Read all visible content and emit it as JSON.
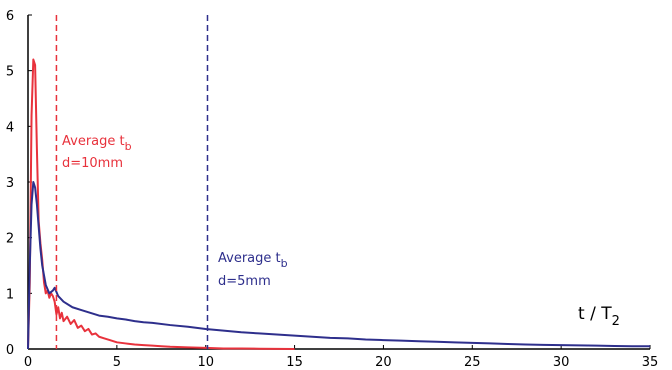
{
  "chart_data": {
    "type": "line",
    "title": "",
    "xlabel": "t / T",
    "xlabel_subscript": "2",
    "ylabel": "",
    "xlim": [
      0,
      35
    ],
    "ylim": [
      0,
      6
    ],
    "xticks": [
      0,
      5,
      10,
      15,
      20,
      25,
      30,
      35
    ],
    "yticks": [
      0,
      1,
      2,
      3,
      4,
      5,
      6
    ],
    "grid": false,
    "colors": {
      "red": "#e8323c",
      "blue": "#2e2f8c"
    },
    "series": [
      {
        "color": "#e8323c",
        "points": [
          [
            0.0,
            0.0
          ],
          [
            0.1,
            1.2
          ],
          [
            0.2,
            4.2
          ],
          [
            0.3,
            5.2
          ],
          [
            0.4,
            5.1
          ],
          [
            0.5,
            3.6
          ],
          [
            0.6,
            2.3
          ],
          [
            0.7,
            1.9
          ],
          [
            0.8,
            1.6
          ],
          [
            0.9,
            1.2
          ],
          [
            1.0,
            1.0
          ],
          [
            1.1,
            1.05
          ],
          [
            1.2,
            0.92
          ],
          [
            1.3,
            1.0
          ],
          [
            1.4,
            0.95
          ],
          [
            1.5,
            0.85
          ],
          [
            1.6,
            0.62
          ],
          [
            1.7,
            0.75
          ],
          [
            1.8,
            0.55
          ],
          [
            1.9,
            0.65
          ],
          [
            2.0,
            0.5
          ],
          [
            2.2,
            0.58
          ],
          [
            2.4,
            0.45
          ],
          [
            2.6,
            0.52
          ],
          [
            2.8,
            0.38
          ],
          [
            3.0,
            0.42
          ],
          [
            3.2,
            0.32
          ],
          [
            3.4,
            0.36
          ],
          [
            3.6,
            0.26
          ],
          [
            3.8,
            0.28
          ],
          [
            4.0,
            0.22
          ],
          [
            4.3,
            0.19
          ],
          [
            4.6,
            0.16
          ],
          [
            5.0,
            0.12
          ],
          [
            5.5,
            0.1
          ],
          [
            6.0,
            0.08
          ],
          [
            6.5,
            0.07
          ],
          [
            7.0,
            0.06
          ],
          [
            7.5,
            0.05
          ],
          [
            8.0,
            0.04
          ],
          [
            9.0,
            0.03
          ],
          [
            10.0,
            0.02
          ],
          [
            11.0,
            0.01
          ],
          [
            12.0,
            0.008
          ],
          [
            13.0,
            0.005
          ],
          [
            14.0,
            0.003
          ],
          [
            15.0,
            0.0
          ]
        ]
      },
      {
        "color": "#2e2f8c",
        "points": [
          [
            0.0,
            0.0
          ],
          [
            0.1,
            1.5
          ],
          [
            0.2,
            2.6
          ],
          [
            0.3,
            3.0
          ],
          [
            0.4,
            2.9
          ],
          [
            0.5,
            2.6
          ],
          [
            0.6,
            2.2
          ],
          [
            0.7,
            1.8
          ],
          [
            0.8,
            1.5
          ],
          [
            1.0,
            1.15
          ],
          [
            1.2,
            1.0
          ],
          [
            1.4,
            1.05
          ],
          [
            1.5,
            1.1
          ],
          [
            1.7,
            0.95
          ],
          [
            2.0,
            0.85
          ],
          [
            2.5,
            0.75
          ],
          [
            3.0,
            0.7
          ],
          [
            3.5,
            0.65
          ],
          [
            4.0,
            0.6
          ],
          [
            4.5,
            0.58
          ],
          [
            5.0,
            0.55
          ],
          [
            5.5,
            0.53
          ],
          [
            6.0,
            0.5
          ],
          [
            6.5,
            0.48
          ],
          [
            7.0,
            0.47
          ],
          [
            8.0,
            0.43
          ],
          [
            9.0,
            0.4
          ],
          [
            10.0,
            0.36
          ],
          [
            11.0,
            0.33
          ],
          [
            12.0,
            0.3
          ],
          [
            13.0,
            0.28
          ],
          [
            14.0,
            0.26
          ],
          [
            15.0,
            0.24
          ],
          [
            16.0,
            0.22
          ],
          [
            17.0,
            0.2
          ],
          [
            18.0,
            0.19
          ],
          [
            19.0,
            0.17
          ],
          [
            20.0,
            0.16
          ],
          [
            21.0,
            0.15
          ],
          [
            22.0,
            0.14
          ],
          [
            23.0,
            0.13
          ],
          [
            24.0,
            0.12
          ],
          [
            25.0,
            0.11
          ],
          [
            26.0,
            0.1
          ],
          [
            27.0,
            0.09
          ],
          [
            28.0,
            0.08
          ],
          [
            29.0,
            0.075
          ],
          [
            30.0,
            0.07
          ],
          [
            31.0,
            0.065
          ],
          [
            32.0,
            0.06
          ],
          [
            33.0,
            0.055
          ],
          [
            34.0,
            0.05
          ],
          [
            35.0,
            0.05
          ]
        ]
      }
    ],
    "annotations": [
      {
        "vline_x": 1.6,
        "color": "#e8323c",
        "label": "Average t",
        "label_sub": "b",
        "note": "d=10mm"
      },
      {
        "vline_x": 10.1,
        "color": "#2e2f8c",
        "label": "Average t",
        "label_sub": "b",
        "note": "d=5mm"
      }
    ]
  }
}
